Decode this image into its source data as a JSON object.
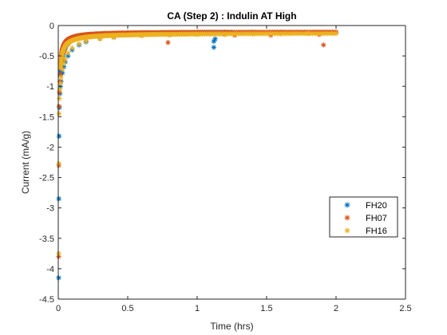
{
  "chart_data": {
    "type": "scatter",
    "title": "CA (Step 2) : Indulin AT High",
    "xlabel": "Time (hrs)",
    "ylabel": "Current (mA/g)",
    "xlim": [
      0,
      2.5
    ],
    "ylim": [
      -4.5,
      0
    ],
    "xticks": [
      0,
      0.5,
      1,
      1.5,
      2,
      2.5
    ],
    "xtick_labels": [
      "0",
      "0.5",
      "1",
      "1.5",
      "2",
      "2.5"
    ],
    "yticks": [
      0,
      -0.5,
      -1,
      -1.5,
      -2,
      -2.5,
      -3,
      -3.5,
      -4,
      -4.5
    ],
    "ytick_labels": [
      "0",
      "-0.5",
      "-1",
      "-1.5",
      "-2",
      "-2.5",
      "-3",
      "-3.5",
      "-4",
      "-4.5"
    ],
    "grid": false,
    "legend_position": "right",
    "marker": "asterisk",
    "series": [
      {
        "name": "FH20",
        "color": "#0072BD",
        "points": [
          [
            0.003,
            -4.15
          ],
          [
            0.004,
            -2.85
          ],
          [
            0.006,
            -1.82
          ],
          [
            0.008,
            -1.35
          ],
          [
            0.012,
            -1.12
          ],
          [
            0.016,
            -1.0
          ],
          [
            0.02,
            -0.92
          ],
          [
            0.03,
            -0.78
          ],
          [
            0.04,
            -0.68
          ],
          [
            0.05,
            -0.6
          ],
          [
            0.07,
            -0.5
          ],
          [
            0.1,
            -0.4
          ],
          [
            0.15,
            -0.32
          ],
          [
            0.2,
            -0.27
          ],
          [
            0.3,
            -0.22
          ],
          [
            0.4,
            -0.19
          ],
          [
            0.6,
            -0.16
          ],
          [
            0.8,
            -0.15
          ],
          [
            1.0,
            -0.14
          ],
          [
            1.12,
            -0.36
          ],
          [
            1.12,
            -0.26
          ],
          [
            1.13,
            -0.22
          ],
          [
            1.2,
            -0.14
          ]
        ]
      },
      {
        "name": "FH07",
        "color": "#D95319",
        "points": [
          [
            0.003,
            -3.8
          ],
          [
            0.004,
            -2.3
          ],
          [
            0.006,
            -1.33
          ],
          [
            0.008,
            -1.1
          ],
          [
            0.012,
            -0.92
          ],
          [
            0.016,
            -0.8
          ],
          [
            0.02,
            -0.7
          ],
          [
            0.03,
            -0.55
          ],
          [
            0.04,
            -0.45
          ],
          [
            0.05,
            -0.38
          ],
          [
            0.07,
            -0.3
          ],
          [
            0.1,
            -0.24
          ],
          [
            0.15,
            -0.19
          ],
          [
            0.2,
            -0.16
          ],
          [
            0.3,
            -0.14
          ],
          [
            0.5,
            -0.12
          ],
          [
            0.79,
            -0.28
          ],
          [
            0.8,
            -0.12
          ],
          [
            1.0,
            -0.11
          ],
          [
            1.2,
            -0.11
          ],
          [
            1.27,
            -0.16
          ],
          [
            1.4,
            -0.11
          ],
          [
            1.53,
            -0.16
          ],
          [
            1.6,
            -0.11
          ],
          [
            1.88,
            -0.15
          ],
          [
            1.91,
            -0.32
          ],
          [
            1.95,
            -0.11
          ],
          [
            2.0,
            -0.11
          ]
        ]
      },
      {
        "name": "FH16",
        "color": "#EDB120",
        "points": [
          [
            0.003,
            -3.75
          ],
          [
            0.004,
            -2.27
          ],
          [
            0.006,
            -1.45
          ],
          [
            0.008,
            -1.2
          ],
          [
            0.012,
            -1.05
          ],
          [
            0.016,
            -0.95
          ],
          [
            0.02,
            -0.85
          ],
          [
            0.03,
            -0.72
          ],
          [
            0.04,
            -0.62
          ],
          [
            0.05,
            -0.55
          ],
          [
            0.07,
            -0.45
          ],
          [
            0.1,
            -0.37
          ],
          [
            0.15,
            -0.3
          ],
          [
            0.2,
            -0.26
          ],
          [
            0.3,
            -0.22
          ],
          [
            0.4,
            -0.2
          ],
          [
            0.6,
            -0.17
          ],
          [
            0.8,
            -0.16
          ],
          [
            1.0,
            -0.15
          ],
          [
            1.2,
            -0.15
          ],
          [
            1.4,
            -0.14
          ],
          [
            1.6,
            -0.14
          ],
          [
            1.8,
            -0.13
          ],
          [
            2.0,
            -0.13
          ]
        ]
      }
    ]
  }
}
